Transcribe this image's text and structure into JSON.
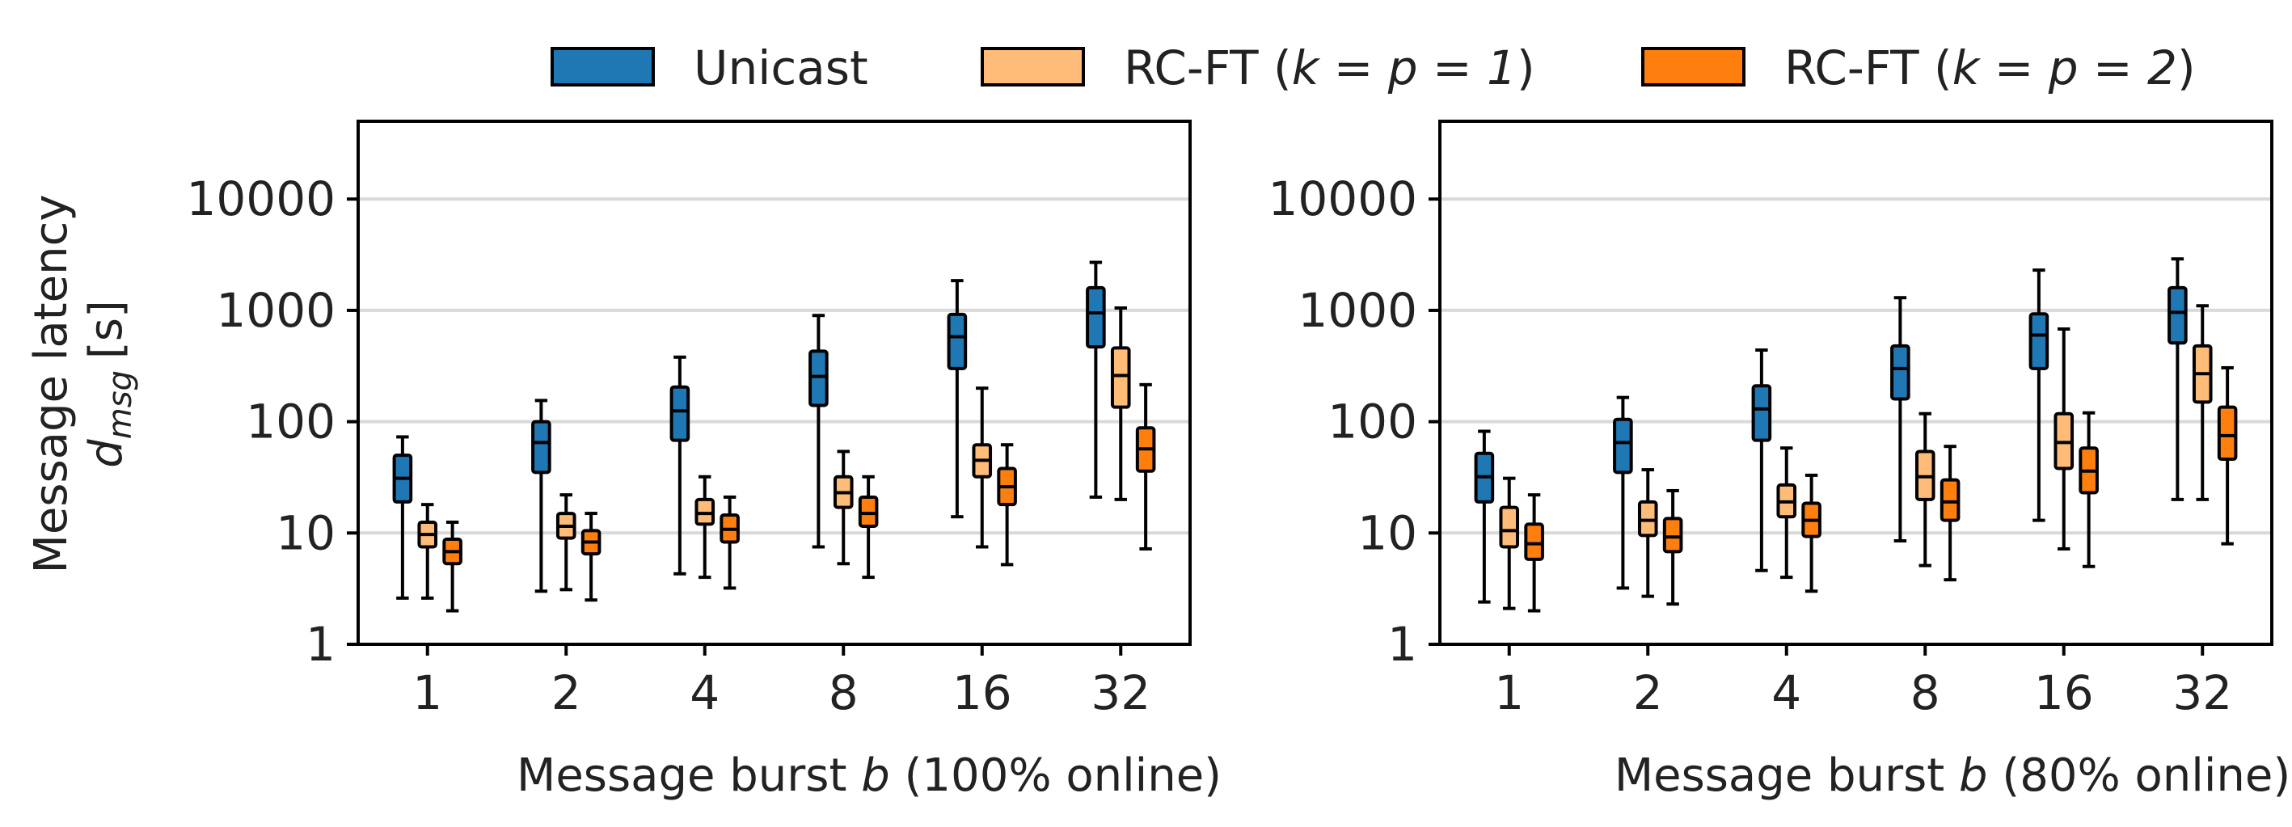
{
  "legend": [
    {
      "label": "Unicast",
      "color": "#1f77b4"
    },
    {
      "label": "RC-FT (",
      "math": "k = p = 1",
      "after": ")",
      "color": "#ffbb78"
    },
    {
      "label": "RC-FT (",
      "math": "k = p = 2",
      "after": ")",
      "color": "#ff7f0e"
    }
  ],
  "ylabel_line1": "Message latency",
  "ylabel_line2": "d",
  "ylabel_sub": "msg",
  "ylabel_unit": "[s]",
  "chart_data": [
    {
      "type": "boxplot",
      "xlabel_pre": "Message burst ",
      "xlabel_var": "b",
      "xlabel_post": " (100% online)",
      "ylabel": "Message latency d_msg [s]",
      "yscale": "log",
      "ylim": [
        1,
        50000
      ],
      "yticks": [
        1,
        10,
        100,
        1000,
        10000
      ],
      "grid": "horizontal",
      "categories": [
        "1",
        "2",
        "4",
        "8",
        "16",
        "32"
      ],
      "series": [
        {
          "name": "Unicast",
          "color": "#1f77b4",
          "boxes": [
            {
              "whislo": 2.6,
              "q1": 19,
              "med": 31,
              "q3": 50,
              "whishi": 73
            },
            {
              "whislo": 3.0,
              "q1": 35,
              "med": 65,
              "q3": 100,
              "whishi": 155
            },
            {
              "whislo": 4.3,
              "q1": 68,
              "med": 125,
              "q3": 205,
              "whishi": 380
            },
            {
              "whislo": 7.5,
              "q1": 140,
              "med": 255,
              "q3": 430,
              "whishi": 900
            },
            {
              "whislo": 14,
              "q1": 300,
              "med": 580,
              "q3": 920,
              "whishi": 1850
            },
            {
              "whislo": 21,
              "q1": 470,
              "med": 950,
              "q3": 1600,
              "whishi": 2700
            }
          ]
        },
        {
          "name": "RC-FT (k = p = 1)",
          "color": "#ffbb78",
          "boxes": [
            {
              "whislo": 2.6,
              "q1": 7.5,
              "med": 9.7,
              "q3": 12.5,
              "whishi": 18
            },
            {
              "whislo": 3.1,
              "q1": 9.0,
              "med": 11.5,
              "q3": 15,
              "whishi": 22
            },
            {
              "whislo": 4.0,
              "q1": 12,
              "med": 15,
              "q3": 20,
              "whishi": 32
            },
            {
              "whislo": 5.3,
              "q1": 17,
              "med": 23,
              "q3": 32,
              "whishi": 54
            },
            {
              "whislo": 7.5,
              "q1": 32,
              "med": 45,
              "q3": 62,
              "whishi": 200
            },
            {
              "whislo": 20,
              "q1": 135,
              "med": 260,
              "q3": 460,
              "whishi": 1050
            }
          ]
        },
        {
          "name": "RC-FT (k = p = 2)",
          "color": "#ff7f0e",
          "boxes": [
            {
              "whislo": 2.0,
              "q1": 5.3,
              "med": 6.8,
              "q3": 8.8,
              "whishi": 12.5
            },
            {
              "whislo": 2.5,
              "q1": 6.5,
              "med": 8.3,
              "q3": 10.5,
              "whishi": 15
            },
            {
              "whislo": 3.2,
              "q1": 8.3,
              "med": 10.8,
              "q3": 14.5,
              "whishi": 21
            },
            {
              "whislo": 4.0,
              "q1": 11.5,
              "med": 15,
              "q3": 21,
              "whishi": 32
            },
            {
              "whislo": 5.2,
              "q1": 18,
              "med": 26,
              "q3": 38,
              "whishi": 62
            },
            {
              "whislo": 7.2,
              "q1": 36,
              "med": 57,
              "q3": 88,
              "whishi": 215
            }
          ]
        }
      ]
    },
    {
      "type": "boxplot",
      "xlabel_pre": "Message burst ",
      "xlabel_var": "b",
      "xlabel_post": " (80% online)",
      "ylabel": "",
      "yscale": "log",
      "ylim": [
        1,
        50000
      ],
      "yticks": [
        1,
        10,
        100,
        1000,
        10000
      ],
      "grid": "horizontal",
      "categories": [
        "1",
        "2",
        "4",
        "8",
        "16",
        "32"
      ],
      "series": [
        {
          "name": "Unicast",
          "color": "#1f77b4",
          "boxes": [
            {
              "whislo": 2.4,
              "q1": 19,
              "med": 32,
              "q3": 52,
              "whishi": 82
            },
            {
              "whislo": 3.2,
              "q1": 35,
              "med": 65,
              "q3": 105,
              "whishi": 165
            },
            {
              "whislo": 4.6,
              "q1": 68,
              "med": 130,
              "q3": 210,
              "whishi": 440
            },
            {
              "whislo": 8.5,
              "q1": 160,
              "med": 300,
              "q3": 480,
              "whishi": 1300
            },
            {
              "whislo": 13,
              "q1": 300,
              "med": 600,
              "q3": 930,
              "whishi": 2300
            },
            {
              "whislo": 20,
              "q1": 510,
              "med": 960,
              "q3": 1600,
              "whishi": 2900
            }
          ]
        },
        {
          "name": "RC-FT (k = p = 1)",
          "color": "#ffbb78",
          "boxes": [
            {
              "whislo": 2.1,
              "q1": 7.5,
              "med": 10.5,
              "q3": 17,
              "whishi": 31
            },
            {
              "whislo": 2.7,
              "q1": 9.5,
              "med": 13,
              "q3": 19,
              "whishi": 37
            },
            {
              "whislo": 4.0,
              "q1": 14,
              "med": 19,
              "q3": 27,
              "whishi": 58
            },
            {
              "whislo": 5.1,
              "q1": 20,
              "med": 32,
              "q3": 54,
              "whishi": 118
            },
            {
              "whislo": 7.2,
              "q1": 38,
              "med": 65,
              "q3": 118,
              "whishi": 680
            },
            {
              "whislo": 20,
              "q1": 150,
              "med": 270,
              "q3": 480,
              "whishi": 1100
            }
          ]
        },
        {
          "name": "RC-FT (k = p = 2)",
          "color": "#ff7f0e",
          "boxes": [
            {
              "whislo": 2.0,
              "q1": 5.8,
              "med": 8.0,
              "q3": 12,
              "whishi": 22
            },
            {
              "whislo": 2.3,
              "q1": 6.8,
              "med": 9.2,
              "q3": 13.5,
              "whishi": 24
            },
            {
              "whislo": 3.0,
              "q1": 9.3,
              "med": 13,
              "q3": 18.5,
              "whishi": 33
            },
            {
              "whislo": 3.8,
              "q1": 13,
              "med": 19,
              "q3": 30,
              "whishi": 60
            },
            {
              "whislo": 5.0,
              "q1": 23,
              "med": 36,
              "q3": 58,
              "whishi": 120
            },
            {
              "whislo": 8.0,
              "q1": 46,
              "med": 75,
              "q3": 135,
              "whishi": 305
            }
          ]
        }
      ]
    }
  ]
}
